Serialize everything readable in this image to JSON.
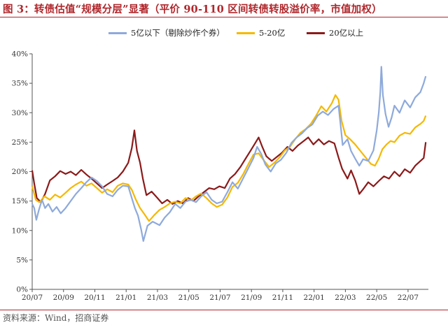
{
  "figure": {
    "title": "图 3：转债估值“规模分层”显著（平价 90-110 区间转债转股溢价率，市值加权）",
    "source": "资料来源：Wind，招商证券"
  },
  "chart_data": {
    "type": "line",
    "title": "",
    "xlabel": "",
    "ylabel": "",
    "ylim": [
      0,
      40
    ],
    "yticks": [
      "0%",
      "5%",
      "10%",
      "15%",
      "20%",
      "25%",
      "30%",
      "35%",
      "40%"
    ],
    "x_range": [
      "2020-07",
      "2022-08"
    ],
    "xticks": [
      "20/07",
      "20/09",
      "20/11",
      "21/01",
      "21/03",
      "21/05",
      "21/07",
      "21/09",
      "21/11",
      "22/01",
      "22/03",
      "22/05",
      "22/07"
    ],
    "grid": false,
    "legend_position": "top",
    "series": [
      {
        "name": "5亿以下（剔除炒作个券）",
        "color": "#8eaadb",
        "points": [
          [
            "2020-07-01",
            14.5
          ],
          [
            "2020-07-05",
            13.8
          ],
          [
            "2020-07-09",
            11.8
          ],
          [
            "2020-07-14",
            13.5
          ],
          [
            "2020-07-20",
            15.2
          ],
          [
            "2020-07-26",
            13.8
          ],
          [
            "2020-08-02",
            14.5
          ],
          [
            "2020-08-10",
            13.2
          ],
          [
            "2020-08-18",
            14.0
          ],
          [
            "2020-08-26",
            12.9
          ],
          [
            "2020-09-05",
            13.8
          ],
          [
            "2020-09-15",
            15.0
          ],
          [
            "2020-09-25",
            16.2
          ],
          [
            "2020-10-05",
            17.2
          ],
          [
            "2020-10-15",
            18.2
          ],
          [
            "2020-10-25",
            19.0
          ],
          [
            "2020-11-05",
            18.4
          ],
          [
            "2020-11-15",
            17.5
          ],
          [
            "2020-11-25",
            16.2
          ],
          [
            "2020-12-05",
            15.8
          ],
          [
            "2020-12-15",
            16.9
          ],
          [
            "2020-12-25",
            17.6
          ],
          [
            "2021-01-05",
            17.5
          ],
          [
            "2021-01-12",
            15.5
          ],
          [
            "2021-01-18",
            13.8
          ],
          [
            "2021-01-24",
            12.5
          ],
          [
            "2021-01-30",
            10.2
          ],
          [
            "2021-02-04",
            8.2
          ],
          [
            "2021-02-12",
            10.8
          ],
          [
            "2021-02-22",
            11.5
          ],
          [
            "2021-03-05",
            10.9
          ],
          [
            "2021-03-15",
            12.2
          ],
          [
            "2021-03-25",
            13.1
          ],
          [
            "2021-04-05",
            14.5
          ],
          [
            "2021-04-15",
            13.8
          ],
          [
            "2021-04-25",
            14.9
          ],
          [
            "2021-05-05",
            15.2
          ],
          [
            "2021-05-15",
            14.8
          ],
          [
            "2021-05-25",
            15.8
          ],
          [
            "2021-06-05",
            16.5
          ],
          [
            "2021-06-15",
            15.2
          ],
          [
            "2021-06-25",
            14.6
          ],
          [
            "2021-07-05",
            14.9
          ],
          [
            "2021-07-15",
            16.5
          ],
          [
            "2021-07-25",
            18.2
          ],
          [
            "2021-08-05",
            17.1
          ],
          [
            "2021-08-15",
            18.8
          ],
          [
            "2021-08-25",
            20.5
          ],
          [
            "2021-09-05",
            22.3
          ],
          [
            "2021-09-12",
            24.2
          ],
          [
            "2021-09-20",
            23.0
          ],
          [
            "2021-09-28",
            21.2
          ],
          [
            "2021-10-08",
            20.0
          ],
          [
            "2021-10-18",
            21.4
          ],
          [
            "2021-10-28",
            22.0
          ],
          [
            "2021-11-08",
            23.2
          ],
          [
            "2021-11-18",
            24.9
          ],
          [
            "2021-11-28",
            25.8
          ],
          [
            "2021-12-08",
            26.5
          ],
          [
            "2021-12-18",
            27.4
          ],
          [
            "2021-12-28",
            28.0
          ],
          [
            "2022-01-08",
            29.5
          ],
          [
            "2022-01-18",
            30.2
          ],
          [
            "2022-01-28",
            29.6
          ],
          [
            "2022-02-08",
            30.6
          ],
          [
            "2022-02-18",
            31.2
          ],
          [
            "2022-02-22",
            28.0
          ],
          [
            "2022-02-26",
            24.5
          ],
          [
            "2022-03-05",
            25.5
          ],
          [
            "2022-03-12",
            23.5
          ],
          [
            "2022-03-20",
            22.2
          ],
          [
            "2022-03-28",
            21.0
          ],
          [
            "2022-04-05",
            22.1
          ],
          [
            "2022-04-15",
            21.8
          ],
          [
            "2022-04-25",
            23.6
          ],
          [
            "2022-05-01",
            27.0
          ],
          [
            "2022-05-05",
            30.0
          ],
          [
            "2022-05-08",
            33.5
          ],
          [
            "2022-05-10",
            37.8
          ],
          [
            "2022-05-13",
            33.0
          ],
          [
            "2022-05-18",
            29.8
          ],
          [
            "2022-05-24",
            27.6
          ],
          [
            "2022-05-30",
            29.2
          ],
          [
            "2022-06-05",
            31.2
          ],
          [
            "2022-06-15",
            30.0
          ],
          [
            "2022-06-25",
            32.1
          ],
          [
            "2022-07-05",
            30.9
          ],
          [
            "2022-07-15",
            32.6
          ],
          [
            "2022-07-25",
            33.5
          ],
          [
            "2022-08-01",
            35.0
          ],
          [
            "2022-08-05",
            36.2
          ]
        ]
      },
      {
        "name": "5-20亿",
        "color": "#f5b800",
        "points": [
          [
            "2020-07-01",
            17.5
          ],
          [
            "2020-07-08",
            15.2
          ],
          [
            "2020-07-15",
            14.8
          ],
          [
            "2020-07-25",
            15.8
          ],
          [
            "2020-08-05",
            15.2
          ],
          [
            "2020-08-15",
            16.1
          ],
          [
            "2020-08-25",
            15.6
          ],
          [
            "2020-09-05",
            16.4
          ],
          [
            "2020-09-15",
            17.2
          ],
          [
            "2020-09-25",
            17.8
          ],
          [
            "2020-10-05",
            18.3
          ],
          [
            "2020-10-15",
            17.6
          ],
          [
            "2020-10-25",
            18.0
          ],
          [
            "2020-11-05",
            17.2
          ],
          [
            "2020-11-15",
            16.4
          ],
          [
            "2020-11-25",
            17.0
          ],
          [
            "2020-12-05",
            16.5
          ],
          [
            "2020-12-15",
            17.6
          ],
          [
            "2020-12-25",
            18.0
          ],
          [
            "2021-01-05",
            17.8
          ],
          [
            "2021-01-12",
            16.9
          ],
          [
            "2021-01-20",
            15.2
          ],
          [
            "2021-01-28",
            13.8
          ],
          [
            "2021-02-05",
            12.9
          ],
          [
            "2021-02-15",
            11.6
          ],
          [
            "2021-02-25",
            12.6
          ],
          [
            "2021-03-05",
            13.5
          ],
          [
            "2021-03-15",
            14.0
          ],
          [
            "2021-03-25",
            14.6
          ],
          [
            "2021-04-05",
            14.9
          ],
          [
            "2021-04-15",
            14.6
          ],
          [
            "2021-04-25",
            15.5
          ],
          [
            "2021-05-05",
            15.1
          ],
          [
            "2021-05-15",
            15.8
          ],
          [
            "2021-05-25",
            16.3
          ],
          [
            "2021-06-05",
            15.5
          ],
          [
            "2021-06-15",
            14.6
          ],
          [
            "2021-06-25",
            14.0
          ],
          [
            "2021-07-05",
            14.4
          ],
          [
            "2021-07-15",
            15.6
          ],
          [
            "2021-07-25",
            17.4
          ],
          [
            "2021-08-05",
            18.1
          ],
          [
            "2021-08-15",
            19.5
          ],
          [
            "2021-08-25",
            21.2
          ],
          [
            "2021-09-05",
            22.9
          ],
          [
            "2021-09-15",
            23.1
          ],
          [
            "2021-09-25",
            21.9
          ],
          [
            "2021-10-05",
            20.8
          ],
          [
            "2021-10-15",
            21.5
          ],
          [
            "2021-10-25",
            22.4
          ],
          [
            "2021-11-05",
            23.6
          ],
          [
            "2021-11-15",
            24.2
          ],
          [
            "2021-11-25",
            25.5
          ],
          [
            "2021-12-05",
            26.6
          ],
          [
            "2021-12-15",
            27.2
          ],
          [
            "2021-12-25",
            28.1
          ],
          [
            "2022-01-05",
            29.5
          ],
          [
            "2022-01-15",
            31.1
          ],
          [
            "2022-01-25",
            30.2
          ],
          [
            "2022-02-05",
            31.6
          ],
          [
            "2022-02-12",
            33.0
          ],
          [
            "2022-02-18",
            32.2
          ],
          [
            "2022-02-24",
            28.6
          ],
          [
            "2022-03-01",
            26.2
          ],
          [
            "2022-03-10",
            25.5
          ],
          [
            "2022-03-20",
            24.6
          ],
          [
            "2022-03-30",
            23.5
          ],
          [
            "2022-04-10",
            22.4
          ],
          [
            "2022-04-20",
            21.3
          ],
          [
            "2022-04-28",
            21.0
          ],
          [
            "2022-05-05",
            22.2
          ],
          [
            "2022-05-12",
            23.8
          ],
          [
            "2022-05-20",
            24.6
          ],
          [
            "2022-05-28",
            25.2
          ],
          [
            "2022-06-05",
            25.0
          ],
          [
            "2022-06-15",
            26.1
          ],
          [
            "2022-06-25",
            26.6
          ],
          [
            "2022-07-05",
            26.4
          ],
          [
            "2022-07-15",
            27.5
          ],
          [
            "2022-07-25",
            28.1
          ],
          [
            "2022-08-01",
            28.6
          ],
          [
            "2022-08-05",
            29.5
          ]
        ]
      },
      {
        "name": "20亿以上",
        "color": "#8b1a1a",
        "points": [
          [
            "2020-07-01",
            20.2
          ],
          [
            "2020-07-05",
            18.0
          ],
          [
            "2020-07-10",
            15.5
          ],
          [
            "2020-07-18",
            14.8
          ],
          [
            "2020-07-26",
            16.2
          ],
          [
            "2020-08-05",
            18.5
          ],
          [
            "2020-08-15",
            19.2
          ],
          [
            "2020-08-25",
            20.1
          ],
          [
            "2020-09-05",
            19.6
          ],
          [
            "2020-09-15",
            20.0
          ],
          [
            "2020-09-25",
            19.4
          ],
          [
            "2020-10-05",
            20.3
          ],
          [
            "2020-10-15",
            19.5
          ],
          [
            "2020-10-25",
            18.8
          ],
          [
            "2020-11-05",
            18.0
          ],
          [
            "2020-11-15",
            17.2
          ],
          [
            "2020-11-25",
            17.8
          ],
          [
            "2020-12-05",
            18.4
          ],
          [
            "2020-12-15",
            19.0
          ],
          [
            "2020-12-25",
            20.0
          ],
          [
            "2021-01-05",
            21.5
          ],
          [
            "2021-01-12",
            24.0
          ],
          [
            "2021-01-17",
            27.0
          ],
          [
            "2021-01-22",
            23.5
          ],
          [
            "2021-01-28",
            21.5
          ],
          [
            "2021-02-03",
            18.8
          ],
          [
            "2021-02-10",
            16.0
          ],
          [
            "2021-02-20",
            16.6
          ],
          [
            "2021-03-01",
            15.5
          ],
          [
            "2021-03-10",
            14.6
          ],
          [
            "2021-03-20",
            15.2
          ],
          [
            "2021-03-30",
            14.5
          ],
          [
            "2021-04-10",
            15.0
          ],
          [
            "2021-04-20",
            14.6
          ],
          [
            "2021-04-30",
            15.5
          ],
          [
            "2021-05-10",
            15.0
          ],
          [
            "2021-05-20",
            15.8
          ],
          [
            "2021-05-30",
            16.5
          ],
          [
            "2021-06-10",
            17.2
          ],
          [
            "2021-06-20",
            17.0
          ],
          [
            "2021-06-30",
            17.5
          ],
          [
            "2021-07-10",
            17.2
          ],
          [
            "2021-07-20",
            18.8
          ],
          [
            "2021-07-30",
            19.6
          ],
          [
            "2021-08-10",
            20.8
          ],
          [
            "2021-08-20",
            22.2
          ],
          [
            "2021-08-30",
            23.6
          ],
          [
            "2021-09-08",
            24.8
          ],
          [
            "2021-09-15",
            25.8
          ],
          [
            "2021-09-22",
            24.2
          ],
          [
            "2021-09-30",
            22.6
          ],
          [
            "2021-10-10",
            21.8
          ],
          [
            "2021-10-20",
            22.5
          ],
          [
            "2021-10-30",
            23.2
          ],
          [
            "2021-11-10",
            24.2
          ],
          [
            "2021-11-20",
            23.5
          ],
          [
            "2021-11-30",
            24.4
          ],
          [
            "2021-12-10",
            25.1
          ],
          [
            "2021-12-20",
            25.8
          ],
          [
            "2021-12-30",
            24.6
          ],
          [
            "2022-01-10",
            25.5
          ],
          [
            "2022-01-20",
            24.6
          ],
          [
            "2022-01-30",
            25.2
          ],
          [
            "2022-02-10",
            24.8
          ],
          [
            "2022-02-18",
            22.4
          ],
          [
            "2022-02-25",
            20.5
          ],
          [
            "2022-03-05",
            18.8
          ],
          [
            "2022-03-12",
            20.2
          ],
          [
            "2022-03-20",
            18.5
          ],
          [
            "2022-03-28",
            16.2
          ],
          [
            "2022-04-05",
            17.0
          ],
          [
            "2022-04-15",
            18.2
          ],
          [
            "2022-04-25",
            17.5
          ],
          [
            "2022-05-05",
            18.4
          ],
          [
            "2022-05-15",
            19.2
          ],
          [
            "2022-05-25",
            18.8
          ],
          [
            "2022-06-05",
            20.0
          ],
          [
            "2022-06-15",
            19.2
          ],
          [
            "2022-06-25",
            20.4
          ],
          [
            "2022-07-05",
            19.8
          ],
          [
            "2022-07-15",
            21.0
          ],
          [
            "2022-07-25",
            21.8
          ],
          [
            "2022-08-01",
            22.3
          ],
          [
            "2022-08-05",
            25.0
          ]
        ]
      }
    ]
  }
}
